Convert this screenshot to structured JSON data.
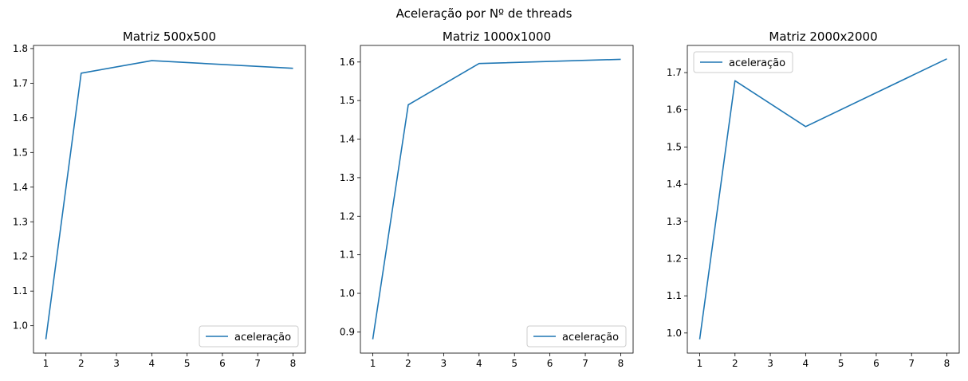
{
  "figure": {
    "title": "Aceleração por Nº de threads"
  },
  "line_color": "#1f77b4",
  "chart_data": [
    {
      "type": "line",
      "title": "Matriz 500x500",
      "xlabel": "",
      "ylabel": "",
      "x": [
        1,
        2,
        4,
        8
      ],
      "xticks": [
        1,
        2,
        3,
        4,
        5,
        6,
        7,
        8
      ],
      "xlim": [
        0.65,
        8.35
      ],
      "yticks": [
        1.0,
        1.1,
        1.2,
        1.3,
        1.4,
        1.5,
        1.6,
        1.7,
        1.8
      ],
      "ylim": [
        0.921,
        1.809
      ],
      "series": [
        {
          "name": "aceleração",
          "values": [
            0.961,
            1.729,
            1.765,
            1.743
          ]
        }
      ],
      "legend": "lower right"
    },
    {
      "type": "line",
      "title": "Matriz 1000x1000",
      "xlabel": "",
      "ylabel": "",
      "x": [
        1,
        2,
        4,
        8
      ],
      "xticks": [
        1,
        2,
        3,
        4,
        5,
        6,
        7,
        8
      ],
      "xlim": [
        0.65,
        8.35
      ],
      "yticks": [
        0.9,
        1.0,
        1.1,
        1.2,
        1.3,
        1.4,
        1.5,
        1.6
      ],
      "ylim": [
        0.845,
        1.643
      ],
      "series": [
        {
          "name": "aceleração",
          "values": [
            0.881,
            1.489,
            1.596,
            1.607
          ]
        }
      ],
      "legend": "lower right"
    },
    {
      "type": "line",
      "title": "Matriz 2000x2000",
      "xlabel": "",
      "ylabel": "",
      "x": [
        1,
        2,
        4,
        8
      ],
      "xticks": [
        1,
        2,
        3,
        4,
        5,
        6,
        7,
        8
      ],
      "xlim": [
        0.65,
        8.35
      ],
      "yticks": [
        1.0,
        1.1,
        1.2,
        1.3,
        1.4,
        1.5,
        1.6,
        1.7
      ],
      "ylim": [
        0.946,
        1.773
      ],
      "series": [
        {
          "name": "aceleração",
          "values": [
            0.983,
            1.678,
            1.555,
            1.737
          ]
        }
      ],
      "legend": "upper left"
    }
  ]
}
